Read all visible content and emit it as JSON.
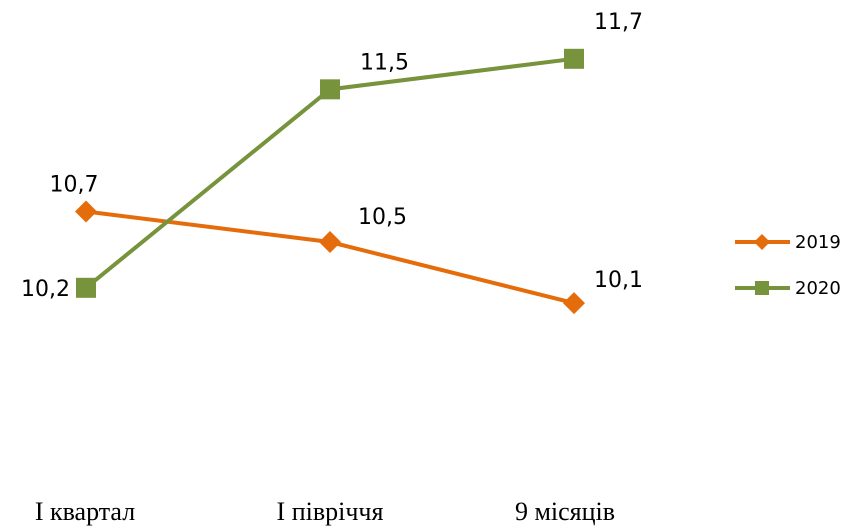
{
  "chart_data": {
    "type": "line",
    "categories": [
      "I квартал",
      "I півріччя",
      "9 місяців"
    ],
    "series": [
      {
        "name": "2019",
        "color": "#e46c0a",
        "values": [
          10.7,
          10.5,
          10.1
        ],
        "value_labels": [
          "10,7",
          "10,5",
          "10,1"
        ],
        "marker": "diamond"
      },
      {
        "name": "2020",
        "color": "#77933c",
        "values": [
          10.2,
          11.5,
          11.7
        ],
        "value_labels": [
          "10,2",
          "11,5",
          "11,7"
        ],
        "marker": "square"
      }
    ],
    "ylim": [
      9,
      12
    ],
    "legend": "right"
  }
}
